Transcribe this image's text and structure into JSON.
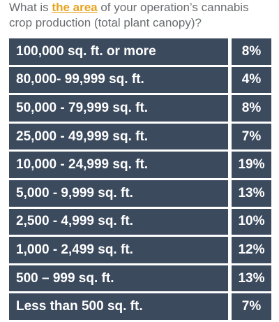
{
  "title": {
    "before": "What is ",
    "emphasis": "the area",
    "after": " of your operation’s cannabis crop production (total plant canopy)?"
  },
  "table": {
    "rows": [
      [
        "100,000 sq. ft. or more",
        "8%"
      ],
      [
        "80,000- 99,999 sq. ft.",
        "4%"
      ],
      [
        "50,000 - 79,999 sq. ft.",
        "8%"
      ],
      [
        "25,000 - 49,999 sq. ft.",
        "7%"
      ],
      [
        "10,000 - 24,999 sq. ft.",
        "19%"
      ],
      [
        "5,000 - 9,999 sq. ft.",
        "13%"
      ],
      [
        "2,500 - 4,999 sq. ft.",
        "10%"
      ],
      [
        "1,000 - 2,499 sq. ft.",
        "12%"
      ],
      [
        "500 – 999 sq. ft.",
        "13%"
      ],
      [
        "Less than 500 sq. ft.",
        "7%"
      ]
    ]
  }
}
